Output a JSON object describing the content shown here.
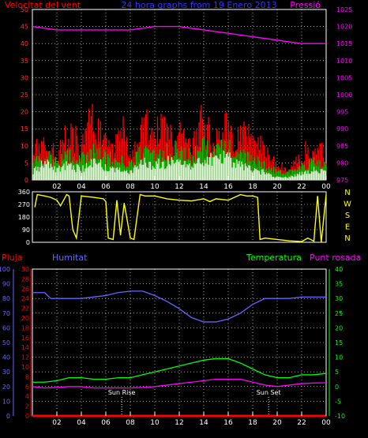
{
  "header": {
    "left_label": "Velocitat del vent",
    "title": "24 hora graphs from 19 Enero 2013",
    "right_label": "Pressió"
  },
  "bottom_header": {
    "rain_label": "Pluja",
    "humidity_label": "Humitat",
    "temperature_label": "Temperatura",
    "dewpoint_label": "Punt rosada"
  },
  "compass": [
    "N",
    "W",
    "S",
    "E",
    "N"
  ],
  "x_ticks": [
    "02",
    "04",
    "06",
    "08",
    "10",
    "12",
    "14",
    "16",
    "18",
    "20",
    "22",
    "00"
  ],
  "annotations": {
    "sunrise": "Sun Rise",
    "sunset": "Sun Set"
  },
  "colors": {
    "wind_gust": "#ff0000",
    "wind_avg": "#00c000",
    "wind_low": "#ddffdd",
    "pressure": "#ff00ff",
    "direction": "#ffff00",
    "humidity": "#6666ff",
    "temperature": "#00ff00",
    "dewpoint": "#ff00ff",
    "rain": "#ff0000"
  },
  "chart_data": [
    {
      "type": "area",
      "name": "wind-and-pressure",
      "y_left_ticks": [
        0,
        5,
        10,
        15,
        20,
        25,
        30,
        35,
        40,
        45,
        50
      ],
      "ylim_left": [
        0,
        50
      ],
      "y_right_ticks": [
        975,
        980,
        985,
        990,
        995,
        1000,
        1005,
        1010,
        1015,
        1020,
        1025
      ],
      "ylim_right": [
        975,
        1025
      ],
      "xlim": [
        0,
        24
      ],
      "pressure": {
        "x": [
          0,
          2,
          4,
          6,
          8,
          10,
          12,
          14,
          16,
          18,
          20,
          22,
          24
        ],
        "y": [
          1020,
          1019,
          1019,
          1019,
          1019,
          1020,
          1020,
          1019,
          1018,
          1017,
          1016,
          1015,
          1015
        ]
      },
      "gust_envelope": {
        "x": [
          0,
          0.5,
          1,
          1.5,
          2,
          2.5,
          3,
          3.5,
          4,
          4.5,
          5,
          5.5,
          6,
          6.5,
          7,
          7.5,
          8,
          8.5,
          9,
          9.5,
          10,
          10.5,
          11,
          11.5,
          12,
          12.5,
          13,
          13.5,
          14,
          14.5,
          15,
          15.5,
          16,
          16.5,
          17,
          17.5,
          18,
          18.5,
          19,
          19.5,
          20,
          20.5,
          21,
          21.5,
          22,
          22.5,
          23,
          23.5,
          24
        ],
        "y": [
          10,
          14,
          18,
          13,
          9,
          15,
          19,
          17,
          12,
          21,
          24,
          18,
          14,
          12,
          15,
          20,
          11,
          14,
          19,
          23,
          17,
          21,
          18,
          15,
          19,
          17,
          14,
          20,
          24,
          18,
          15,
          22,
          20,
          17,
          16,
          19,
          13,
          15,
          11,
          9,
          5,
          6,
          4,
          7,
          9,
          13,
          10,
          14,
          8
        ]
      },
      "avg_envelope": {
        "x": [
          0,
          1,
          2,
          3,
          4,
          5,
          6,
          7,
          8,
          9,
          10,
          11,
          12,
          13,
          14,
          15,
          16,
          17,
          18,
          19,
          20,
          21,
          22,
          23,
          24
        ],
        "y": [
          6,
          10,
          7,
          9,
          8,
          13,
          9,
          8,
          7,
          11,
          10,
          11,
          12,
          9,
          13,
          12,
          13,
          10,
          8,
          6,
          3,
          3,
          5,
          7,
          6
        ]
      },
      "low_envelope": {
        "x": [
          0,
          1,
          2,
          3,
          4,
          5,
          6,
          7,
          8,
          9,
          10,
          11,
          12,
          13,
          14,
          15,
          16,
          17,
          18,
          19,
          20,
          21,
          22,
          23,
          24
        ],
        "y": [
          3,
          7,
          4,
          6,
          4,
          8,
          5,
          4,
          3,
          7,
          6,
          7,
          8,
          5,
          9,
          8,
          9,
          6,
          4,
          3,
          1,
          1,
          3,
          4,
          3
        ]
      }
    },
    {
      "type": "line",
      "name": "wind-direction",
      "y_ticks": [
        0,
        90,
        180,
        270,
        360
      ],
      "ylim": [
        0,
        360
      ],
      "xlim": [
        0,
        24
      ],
      "series": [
        {
          "x": [
            0.2,
            0.4,
            1,
            1.5,
            2,
            2.3,
            2.8,
            3.0,
            3.3,
            3.6,
            4,
            5,
            5.8,
            6.0,
            6.2,
            6.6,
            6.9,
            7.2,
            7.5,
            8,
            8.3,
            8.8,
            9.2,
            10,
            11,
            12,
            13,
            14,
            14.5,
            15,
            16,
            17,
            17.5,
            18,
            18.4,
            18.6,
            19,
            20,
            21,
            22,
            22.5,
            23,
            23.3,
            23.6,
            24
          ],
          "y": [
            250,
            340,
            330,
            320,
            300,
            260,
            340,
            330,
            90,
            30,
            330,
            320,
            310,
            290,
            30,
            20,
            300,
            50,
            280,
            30,
            20,
            340,
            330,
            330,
            310,
            300,
            295,
            310,
            290,
            310,
            300,
            340,
            330,
            330,
            320,
            20,
            30,
            20,
            10,
            5,
            30,
            8,
            330,
            0,
            340
          ]
        }
      ]
    },
    {
      "type": "line",
      "name": "humidity-temperature",
      "y_left_ticks": [
        0,
        10,
        20,
        30,
        40,
        50,
        60,
        70,
        80,
        90,
        100
      ],
      "ylim_humidity": [
        0,
        100
      ],
      "y_rain_ticks": [
        0,
        2,
        4,
        6,
        8,
        10,
        12,
        14,
        16,
        18,
        20,
        22,
        24,
        26,
        28,
        30
      ],
      "ylim_rain": [
        0,
        30
      ],
      "y_right_ticks": [
        -10,
        -5,
        0,
        5,
        10,
        15,
        20,
        25,
        30,
        35,
        40
      ],
      "ylim_temperature": [
        -10,
        40
      ],
      "xlim": [
        0,
        24
      ],
      "series": [
        {
          "name": "Humitat",
          "x": [
            0,
            1,
            1.5,
            2,
            3,
            4,
            6,
            7,
            8,
            9,
            10,
            11,
            12,
            13,
            14,
            15,
            16,
            17,
            18,
            19,
            20,
            21,
            22,
            23,
            24
          ],
          "y": [
            84,
            84,
            80,
            80,
            80,
            80,
            82,
            84,
            85,
            85,
            82,
            78,
            73,
            67,
            64,
            64,
            66,
            70,
            76,
            80,
            80,
            80,
            81,
            81,
            81
          ]
        },
        {
          "name": "Temperatura",
          "x": [
            0,
            1,
            2,
            3,
            4,
            5,
            6,
            7,
            8,
            9,
            10,
            11,
            12,
            13,
            14,
            15,
            16,
            17,
            18,
            19,
            20,
            21,
            22,
            23,
            24
          ],
          "y": [
            1.5,
            1.5,
            2,
            3,
            3,
            2.5,
            2.5,
            3,
            3,
            4,
            5,
            6,
            7,
            8,
            9,
            9.5,
            9.5,
            8,
            6,
            4,
            3,
            3,
            4,
            4,
            4.5
          ]
        },
        {
          "name": "Punt rosada",
          "x": [
            0,
            1,
            2,
            3,
            4,
            5,
            6,
            7,
            8,
            9,
            10,
            11,
            12,
            13,
            14,
            15,
            16,
            17,
            18,
            19,
            20,
            21,
            22,
            23,
            24
          ],
          "y": [
            0,
            -0.5,
            -0.3,
            0,
            0,
            -0.5,
            -0.5,
            -0.5,
            -0.5,
            -0.3,
            0,
            0.5,
            1,
            1.5,
            2,
            2.5,
            2.5,
            2.5,
            1.5,
            0.5,
            0,
            0.5,
            1,
            1.2,
            1.3
          ]
        },
        {
          "name": "Pluja",
          "x": [
            0,
            24
          ],
          "y": [
            0,
            0
          ]
        }
      ],
      "sunrise_x": 7.3,
      "sunset_x": 19.3
    }
  ]
}
